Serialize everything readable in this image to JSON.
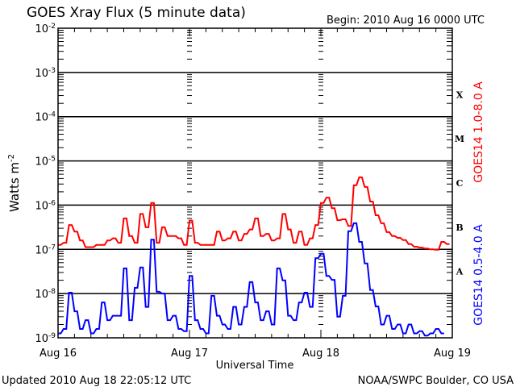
{
  "chart_data": {
    "type": "line",
    "title": "GOES Xray Flux (5 minute data)",
    "begin_label": "Begin:  2010 Aug 16 0000 UTC",
    "xlabel": "Universal Time",
    "ylabel": "Watts m",
    "ylabel_exp": "-2",
    "yscale": "log",
    "ylim_log10": [
      -9,
      -2
    ],
    "y_ticks": [
      {
        "base": "10",
        "exp": "-2",
        "log": -2
      },
      {
        "base": "10",
        "exp": "-3",
        "log": -3
      },
      {
        "base": "10",
        "exp": "-4",
        "log": -4
      },
      {
        "base": "10",
        "exp": "-5",
        "log": -5
      },
      {
        "base": "10",
        "exp": "-6",
        "log": -6
      },
      {
        "base": "10",
        "exp": "-7",
        "log": -7
      },
      {
        "base": "10",
        "exp": "-8",
        "log": -8
      },
      {
        "base": "10",
        "exp": "-9",
        "log": -9
      }
    ],
    "xlim_hours": [
      0,
      72
    ],
    "x_ticks": [
      {
        "label": "Aug 16",
        "hour": 0
      },
      {
        "label": "Aug 17",
        "hour": 24
      },
      {
        "label": "Aug 18",
        "hour": 48
      },
      {
        "label": "Aug 19",
        "hour": 72
      }
    ],
    "flare_classes": [
      {
        "label": "X",
        "log": -3.5
      },
      {
        "label": "M",
        "log": -4.5
      },
      {
        "label": "C",
        "log": -5.5
      },
      {
        "label": "B",
        "log": -6.5
      },
      {
        "label": "A",
        "log": -7.5
      }
    ],
    "grid": "horizontal at decades, dashed day boundaries",
    "series": [
      {
        "name": "GOES14 1.0-8.0 A",
        "color": "#ff0000",
        "x_hours_step": 1,
        "log10_values": [
          -6.9,
          -6.85,
          -6.45,
          -6.6,
          -6.8,
          -6.95,
          -6.95,
          -6.9,
          -6.9,
          -6.8,
          -6.75,
          -6.85,
          -6.3,
          -6.7,
          -6.85,
          -6.2,
          -6.5,
          -5.95,
          -6.85,
          -6.5,
          -6.7,
          -6.7,
          -6.75,
          -6.9,
          -6.35,
          -6.85,
          -6.9,
          -6.9,
          -6.9,
          -6.6,
          -6.8,
          -6.75,
          -6.6,
          -6.8,
          -6.65,
          -6.55,
          -6.3,
          -6.7,
          -6.65,
          -6.8,
          -6.75,
          -6.2,
          -6.55,
          -6.85,
          -6.6,
          -6.9,
          -6.75,
          -6.45,
          -5.95,
          -5.83,
          -6.07,
          -6.34,
          -6.32,
          -6.47,
          -5.55,
          -5.37,
          -5.59,
          -5.92,
          -6.23,
          -6.41,
          -6.61,
          -6.7,
          -6.74,
          -6.79,
          -6.88,
          -6.94,
          -6.96,
          -6.98,
          -7.0,
          -7.01,
          -6.83,
          -6.88
        ]
      },
      {
        "name": "GOES14 0.5-4.0 A",
        "color": "#0000ff",
        "x_hours_step": 1,
        "log10_values": [
          -8.9,
          -8.8,
          -7.98,
          -8.4,
          -8.8,
          -8.6,
          -8.9,
          -8.8,
          -8.2,
          -8.6,
          -8.5,
          -8.5,
          -7.43,
          -8.6,
          -7.87,
          -7.41,
          -8.3,
          -6.78,
          -7.96,
          -8.0,
          -8.6,
          -8.5,
          -8.8,
          -8.85,
          -7.6,
          -8.6,
          -8.8,
          -8.9,
          -8.05,
          -8.5,
          -8.7,
          -8.8,
          -8.3,
          -8.7,
          -8.3,
          -7.74,
          -8.2,
          -8.6,
          -8.4,
          -8.7,
          -7.43,
          -7.7,
          -8.5,
          -8.6,
          -8.2,
          -7.98,
          -8.3,
          -7.2,
          -7.1,
          -7.6,
          -7.69,
          -8.52,
          -8.05,
          -6.59,
          -6.41,
          -6.83,
          -7.32,
          -7.92,
          -8.29,
          -8.7,
          -8.5,
          -8.8,
          -8.7,
          -8.9,
          -8.7,
          -8.9,
          -8.85,
          -8.95,
          -8.9,
          -8.8,
          -8.9
        ]
      }
    ]
  },
  "footer": {
    "updated": "Updated 2010 Aug 18 22:05:12 UTC",
    "credit": "NOAA/SWPC Boulder, CO USA"
  }
}
